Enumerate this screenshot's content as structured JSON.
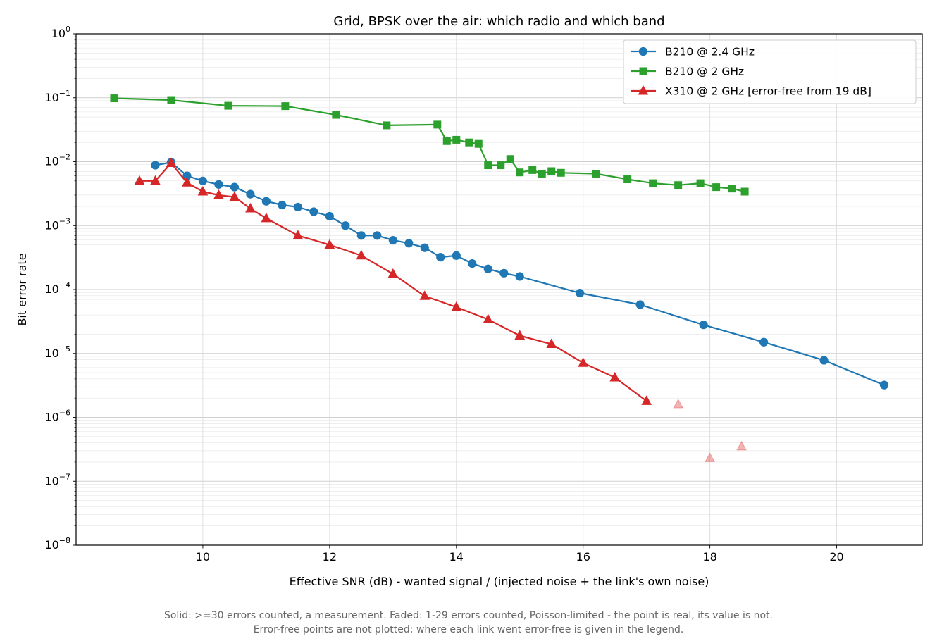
{
  "chart_data": {
    "type": "line",
    "title": "Grid, BPSK over the air: which radio and which band",
    "xlabel": "Effective SNR (dB)  -  wanted signal / (injected noise + the link's own noise)",
    "ylabel": "Bit error rate",
    "xlim": [
      8.0,
      21.35
    ],
    "ylim": [
      1e-08,
      1
    ],
    "yscale": "log",
    "grid": true,
    "legend_position": "top-right",
    "x_ticks": [
      10,
      12,
      14,
      16,
      18,
      20
    ],
    "y_ticks": [
      {
        "base": "10",
        "exp": "0"
      },
      {
        "base": "10",
        "exp": "−1"
      },
      {
        "base": "10",
        "exp": "−2"
      },
      {
        "base": "10",
        "exp": "−3"
      },
      {
        "base": "10",
        "exp": "−4"
      },
      {
        "base": "10",
        "exp": "−5"
      },
      {
        "base": "10",
        "exp": "−6"
      },
      {
        "base": "10",
        "exp": "−7"
      },
      {
        "base": "10",
        "exp": "−8"
      }
    ],
    "series": [
      {
        "name": "B210 @ 2.4 GHz",
        "color": "#1f77b4",
        "marker": "circle",
        "x": [
          9.25,
          9.5,
          9.75,
          10.0,
          10.25,
          10.5,
          10.75,
          11.0,
          11.25,
          11.5,
          11.75,
          12.0,
          12.25,
          12.5,
          12.75,
          13.0,
          13.25,
          13.5,
          13.75,
          14.0,
          14.25,
          14.5,
          14.75,
          15.0,
          15.95,
          16.9,
          17.9,
          18.85,
          19.8,
          20.75
        ],
        "y": [
          0.0088,
          0.0098,
          0.006,
          0.005,
          0.0044,
          0.004,
          0.0031,
          0.0024,
          0.0021,
          0.00195,
          0.00165,
          0.0014,
          0.001,
          0.0007,
          0.0007,
          0.00059,
          0.00053,
          0.00045,
          0.00032,
          0.00034,
          0.000255,
          0.00021,
          0.00018,
          0.00016,
          8.8e-05,
          5.8e-05,
          2.8e-05,
          1.5e-05,
          7.8e-06,
          3.2e-06
        ]
      },
      {
        "name": "B210 @ 2 GHz",
        "color": "#2ca02c",
        "marker": "square",
        "x": [
          8.6,
          9.5,
          10.4,
          11.3,
          12.1,
          12.9,
          13.7,
          13.85,
          14.0,
          14.2,
          14.35,
          14.5,
          14.7,
          14.85,
          15.0,
          15.2,
          15.35,
          15.5,
          15.65,
          16.2,
          16.7,
          17.1,
          17.5,
          17.85,
          18.1,
          18.35,
          18.55
        ],
        "y": [
          0.098,
          0.092,
          0.075,
          0.074,
          0.054,
          0.037,
          0.038,
          0.021,
          0.022,
          0.02,
          0.019,
          0.0088,
          0.0088,
          0.011,
          0.0068,
          0.0074,
          0.0065,
          0.0071,
          0.0067,
          0.0065,
          0.0053,
          0.0046,
          0.0043,
          0.0046,
          0.004,
          0.0038,
          0.0034
        ]
      },
      {
        "name": "X310 @ 2 GHz   [error-free from 19 dB]",
        "color": "#d62728",
        "marker": "triangle",
        "x": [
          9.0,
          9.25,
          9.5,
          9.75,
          10.0,
          10.25,
          10.5,
          10.75,
          11.0,
          11.5,
          12.0,
          12.5,
          13.0,
          13.5,
          14.0,
          14.5,
          15.0,
          15.5,
          16.0,
          16.5,
          17.0
        ],
        "y": [
          0.005,
          0.005,
          0.0095,
          0.0047,
          0.0034,
          0.003,
          0.0028,
          0.00185,
          0.0013,
          0.0007,
          0.0005,
          0.00034,
          0.000175,
          7.9e-05,
          5.3e-05,
          3.4e-05,
          1.9e-05,
          1.4e-05,
          7.1e-06,
          4.2e-06,
          1.8e-06
        ],
        "faded_x": [
          17.5,
          18.0,
          18.5
        ],
        "faded_y": [
          1.6e-06,
          2.3e-07,
          3.5e-07
        ]
      }
    ]
  },
  "caption": {
    "line1": "Solid: >=30 errors counted, a measurement.   Faded: 1-29 errors counted, Poisson-limited - the point is real, its value is not.",
    "line2": "Error-free points are not plotted; where each link went error-free is given in the legend."
  }
}
